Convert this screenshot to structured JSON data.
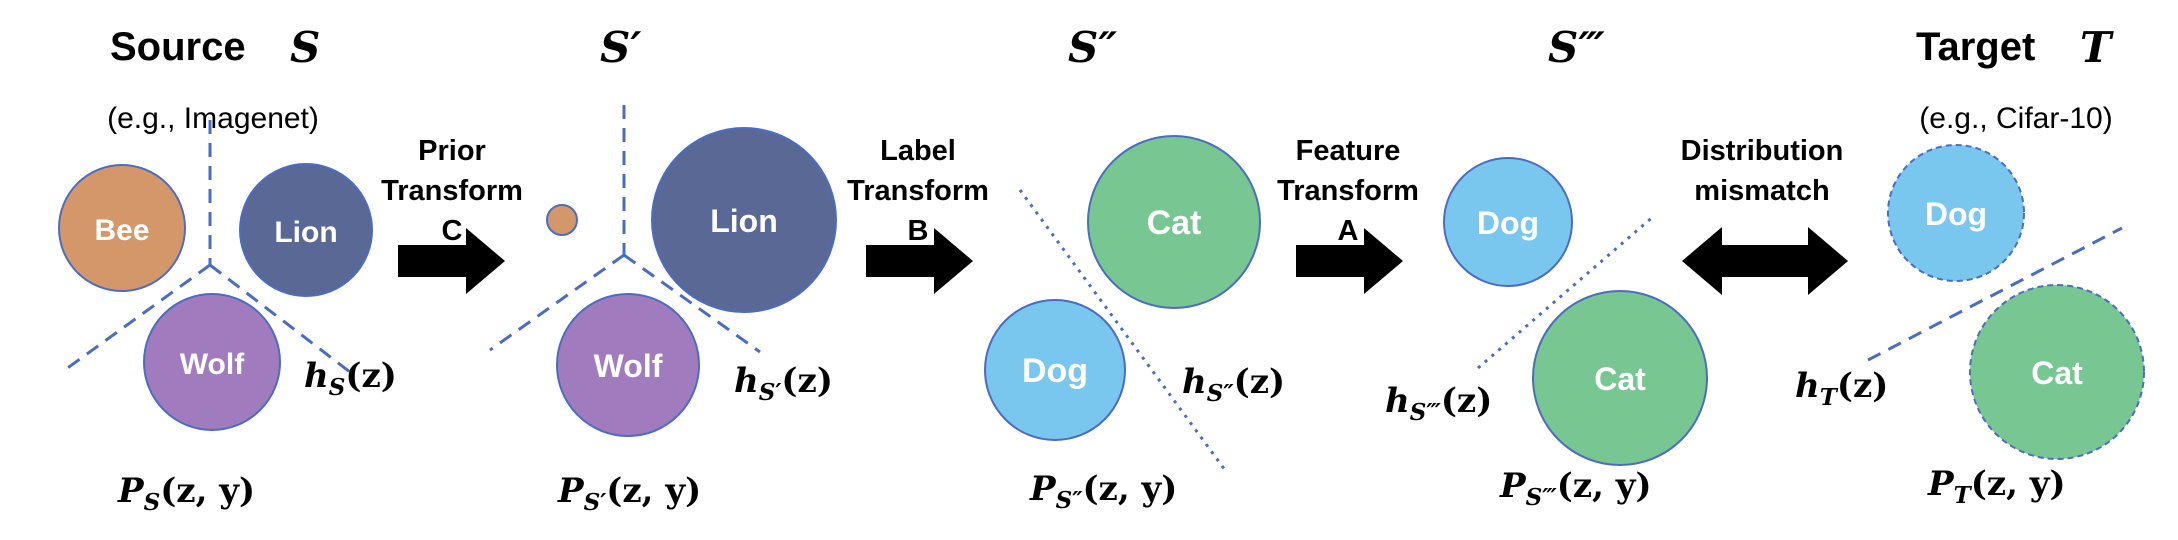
{
  "stages": [
    {
      "prefix": "Source",
      "symbol": "S",
      "note": "(e.g., Imagenet)",
      "h_sub": "S",
      "p_sub": "S"
    },
    {
      "prefix": "",
      "symbol": "S′",
      "note": "",
      "h_sub": "S′",
      "p_sub": "S′"
    },
    {
      "prefix": "",
      "symbol": "S″",
      "note": "",
      "h_sub": "S″",
      "p_sub": "S″"
    },
    {
      "prefix": "",
      "symbol": "S‴",
      "note": "",
      "h_sub": "S‴",
      "p_sub": "S‴"
    },
    {
      "prefix": "Target",
      "symbol": "T",
      "note": "(e.g., Cifar-10)",
      "h_sub": "T",
      "p_sub": "T"
    }
  ],
  "classes": {
    "bee": "Bee",
    "lion": "Lion",
    "wolf": "Wolf",
    "cat": "Cat",
    "dog": "Dog"
  },
  "math": {
    "h": "h",
    "p": "P",
    "h_arg": "(z)",
    "p_arg": "(z, y)"
  },
  "transforms": [
    {
      "line1": "Prior",
      "line2": "Transform",
      "letter": "C"
    },
    {
      "line1": "Label",
      "line2": "Transform",
      "letter": "B"
    },
    {
      "line1": "Feature",
      "line2": "Transform",
      "letter": "A"
    },
    {
      "line1": "Distribution",
      "line2": "mismatch",
      "letter": ""
    }
  ],
  "colors": {
    "bee": "#D4976A",
    "lion": "#5A6896",
    "wolf": "#A07BBE",
    "cat": "#78C792",
    "dog": "#79C6EF",
    "circle_stroke": "#4B6CC1",
    "boundary": "#4B6CC1",
    "arrow": "#000000",
    "text": "#000000",
    "label_text": "#ffffff"
  }
}
